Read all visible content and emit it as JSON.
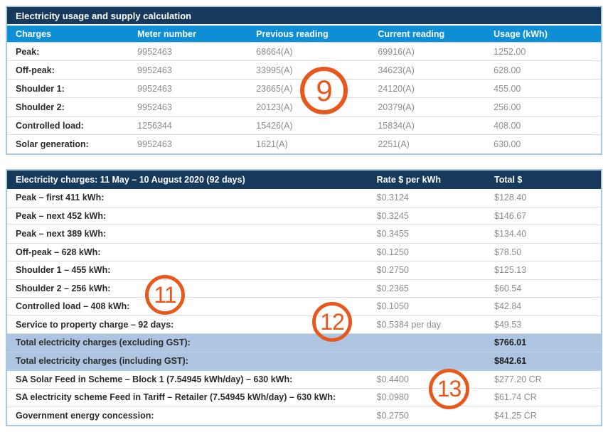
{
  "colors": {
    "navy_header": "#16395c",
    "blue_header": "#0e8ed5",
    "table_border": "#a6c9e2",
    "highlight_row": "#adc5e0",
    "annotation_orange": "#e6581c",
    "value_gray": "#8c8c8c"
  },
  "usage_table": {
    "title": "Electricity usage and supply calculation",
    "columns": [
      "Charges",
      "Meter number",
      "Previous reading",
      "Current reading",
      "Usage (kWh)"
    ],
    "rows": [
      {
        "charge": "Peak:",
        "meter": "9952463",
        "previous": "68664(A)",
        "current": "69916(A)",
        "usage": "1252.00"
      },
      {
        "charge": "Off-peak:",
        "meter": "9952463",
        "previous": "33995(A)",
        "current": "34623(A)",
        "usage": "628.00"
      },
      {
        "charge": "Shoulder 1:",
        "meter": "9952463",
        "previous": "23665(A)",
        "current": "24120(A)",
        "usage": "455.00"
      },
      {
        "charge": "Shoulder 2:",
        "meter": "9952463",
        "previous": "20123(A)",
        "current": "20379(A)",
        "usage": "256.00"
      },
      {
        "charge": "Controlled load:",
        "meter": "1256344",
        "previous": "15426(A)",
        "current": "15834(A)",
        "usage": "408.00"
      },
      {
        "charge": "Solar generation:",
        "meter": "9952463",
        "previous": "1621(A)",
        "current": "2251(A)",
        "usage": "630.00"
      }
    ]
  },
  "charges_table": {
    "title": "Electricity charges: 11 May – 10 August 2020 (92 days)",
    "rate_column": "Rate $ per kWh",
    "total_column": "Total $",
    "rows": [
      {
        "label": "Peak – first 411 kWh:",
        "rate": "$0.3124",
        "total": "$128.40"
      },
      {
        "label": "Peak – next 452 kWh:",
        "rate": "$0.3245",
        "total": "$146.67"
      },
      {
        "label": "Peak – next 389 kWh:",
        "rate": "$0.3455",
        "total": "$134.40"
      },
      {
        "label": "Off-peak – 628 kWh:",
        "rate": "$0.1250",
        "total": "$78.50"
      },
      {
        "label": "Shoulder 1 – 455 kWh:",
        "rate": "$0.2750",
        "total": "$125.13"
      },
      {
        "label": "Shoulder 2 – 256 kWh:",
        "rate": "$0.2365",
        "total": "$60.54"
      },
      {
        "label": "Controlled load – 408 kWh:",
        "rate": "$0.1050",
        "total": "$42.84"
      },
      {
        "label": "Service to property charge – 92 days:",
        "rate": "$0.5384 per day",
        "total": "$49.53"
      },
      {
        "label": "Total electricity charges (excluding GST):",
        "rate": "",
        "total": "$766.01"
      },
      {
        "label": "Total electricity charges (including GST):",
        "rate": "",
        "total": "$842.61"
      },
      {
        "label": "SA Solar Feed in Scheme – Block 1 (7.54945 kWh/day) – 630 kWh:",
        "rate": "$0.4400",
        "total": "$277.20 CR"
      },
      {
        "label": "SA electricity scheme Feed in Tariff – Retailer (7.54945 kWh/day) – 630 kWh:",
        "rate": "$0.0980",
        "total": "$61.74 CR"
      },
      {
        "label": "Government energy concession:",
        "rate": "$0.2750",
        "total": "$41.25 CR"
      }
    ]
  },
  "annotations": [
    {
      "label": "9"
    },
    {
      "label": "11"
    },
    {
      "label": "12"
    },
    {
      "label": "13"
    }
  ]
}
